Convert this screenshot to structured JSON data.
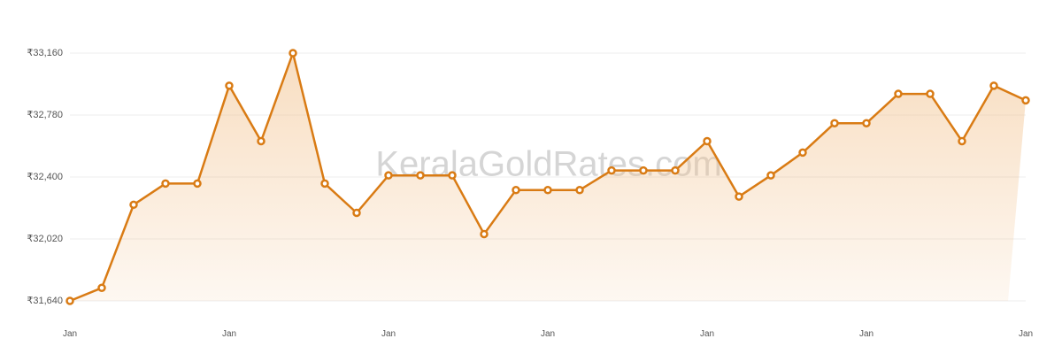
{
  "watermark": "KeralaGoldRates.com",
  "chart_data": {
    "type": "area",
    "title": "",
    "xlabel": "",
    "ylabel": "",
    "grid": true,
    "legend": "none",
    "line_color": "#d97b14",
    "fill_color": "#f2c28e",
    "point_fill": "#ffffff",
    "ylim": [
      31640,
      33160
    ],
    "y_ticks": [
      31640,
      32020,
      32400,
      32780,
      33160
    ],
    "y_tick_labels": [
      "₹31,640",
      "₹32,020",
      "₹32,400",
      "₹32,780",
      "₹33,160"
    ],
    "x_tick_labels": [
      "Jan",
      "Jan",
      "Jan",
      "Jan",
      "Jan",
      "Jan",
      "Jan"
    ],
    "series": [
      {
        "values": [
          31640,
          31720,
          32230,
          32360,
          32360,
          32960,
          32620,
          33160,
          32360,
          32180,
          32410,
          32410,
          32410,
          32050,
          32320,
          32320,
          32320,
          32440,
          32440,
          32440,
          32620,
          32280,
          32410,
          32550,
          32730,
          32730,
          32910,
          32910,
          32620,
          32960,
          32870
        ]
      }
    ]
  }
}
